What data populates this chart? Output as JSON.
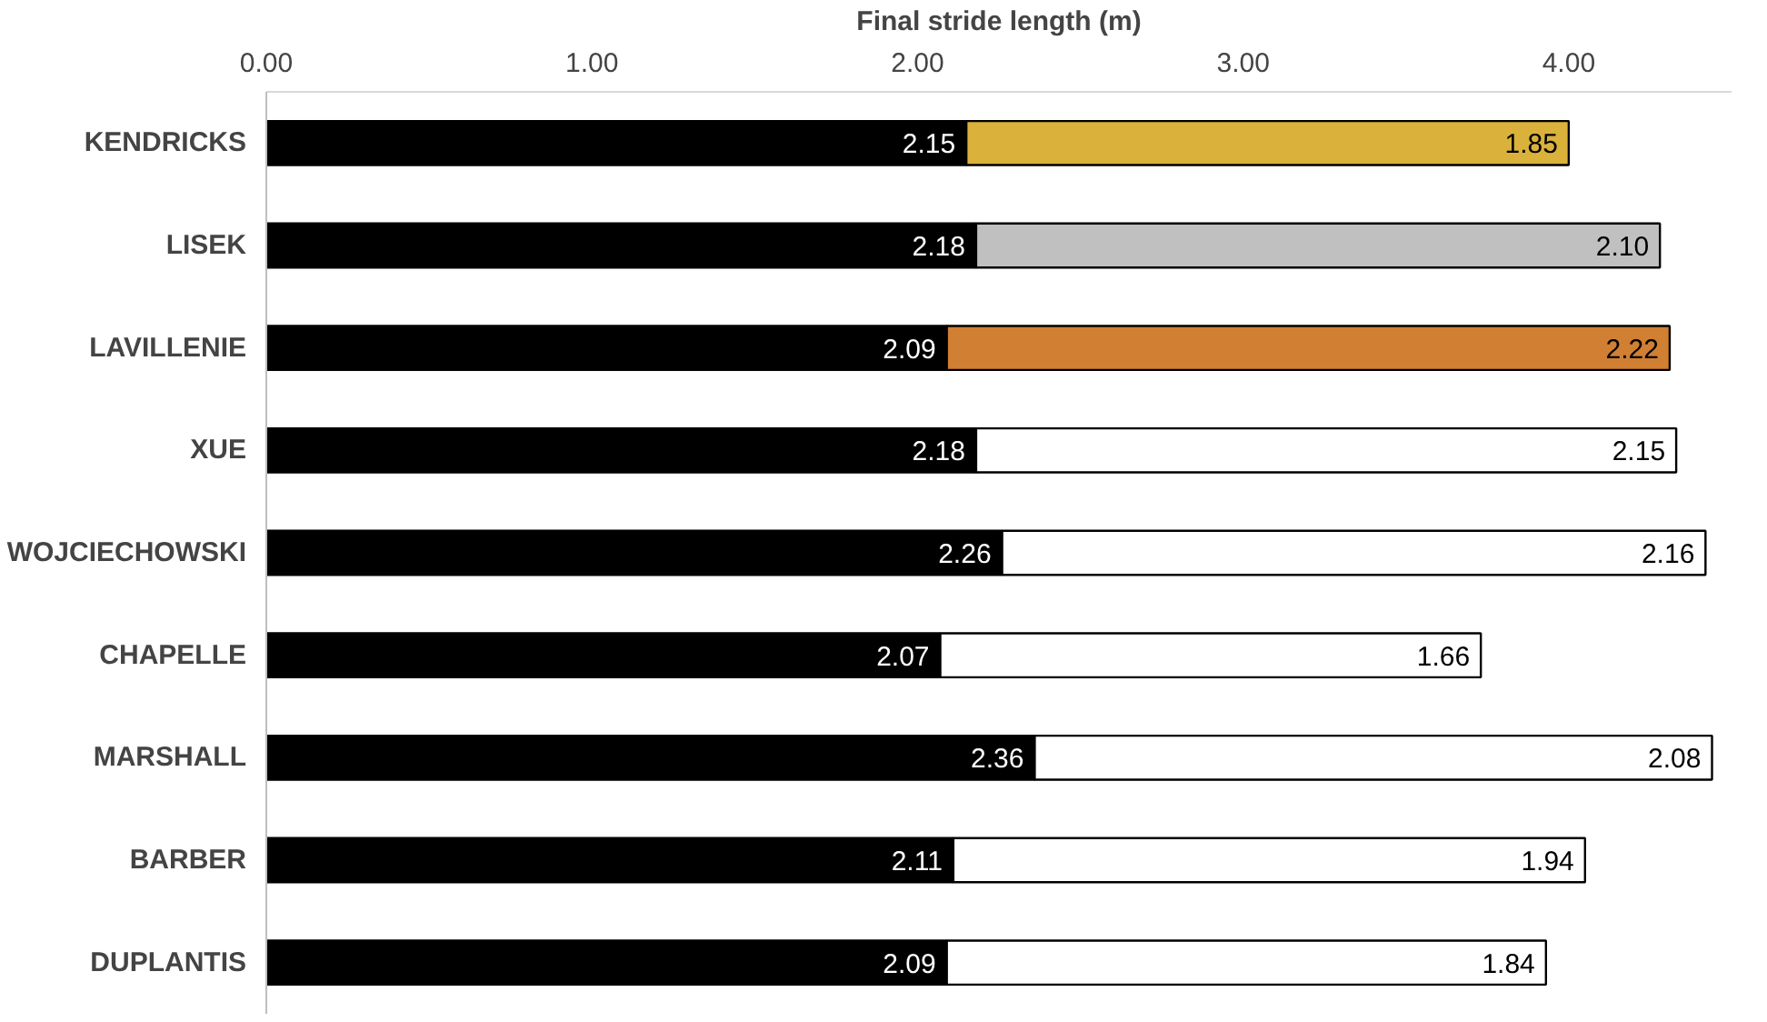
{
  "chart_data": {
    "type": "bar",
    "orientation": "horizontal",
    "stacked": true,
    "xlabel": "Final stride length (m)",
    "categories": [
      "KENDRICKS",
      "LISEK",
      "LAVILLENIE",
      "XUE",
      "WOJCIECHOWSKI",
      "CHAPELLE",
      "MARSHALL",
      "BARBER",
      "DUPLANTIS"
    ],
    "series": [
      {
        "color": "#000000",
        "values": [
          2.15,
          2.18,
          2.09,
          2.18,
          2.26,
          2.07,
          2.36,
          2.11,
          2.09
        ],
        "value_labels": [
          "2.15",
          "2.18",
          "2.09",
          "2.18",
          "2.26",
          "2.07",
          "2.36",
          "2.11",
          "2.09"
        ]
      },
      {
        "colors": [
          "#d9b13b",
          "#c0c0c0",
          "#d17f33",
          "#ffffff",
          "#ffffff",
          "#ffffff",
          "#ffffff",
          "#ffffff",
          "#ffffff"
        ],
        "values": [
          1.85,
          2.1,
          2.22,
          2.15,
          2.16,
          1.66,
          2.08,
          1.94,
          1.84
        ],
        "value_labels": [
          "1.85",
          "2.10",
          "2.22",
          "2.15",
          "2.16",
          "1.66",
          "2.08",
          "1.94",
          "1.84"
        ]
      }
    ],
    "xlim": [
      0,
      4.5
    ],
    "xticks": [
      {
        "value": 0,
        "label": "0.00"
      },
      {
        "value": 1,
        "label": "1.00"
      },
      {
        "value": 2,
        "label": "2.00"
      },
      {
        "value": 3,
        "label": "3.00"
      },
      {
        "value": 4,
        "label": "4.00"
      }
    ],
    "grid": false
  }
}
